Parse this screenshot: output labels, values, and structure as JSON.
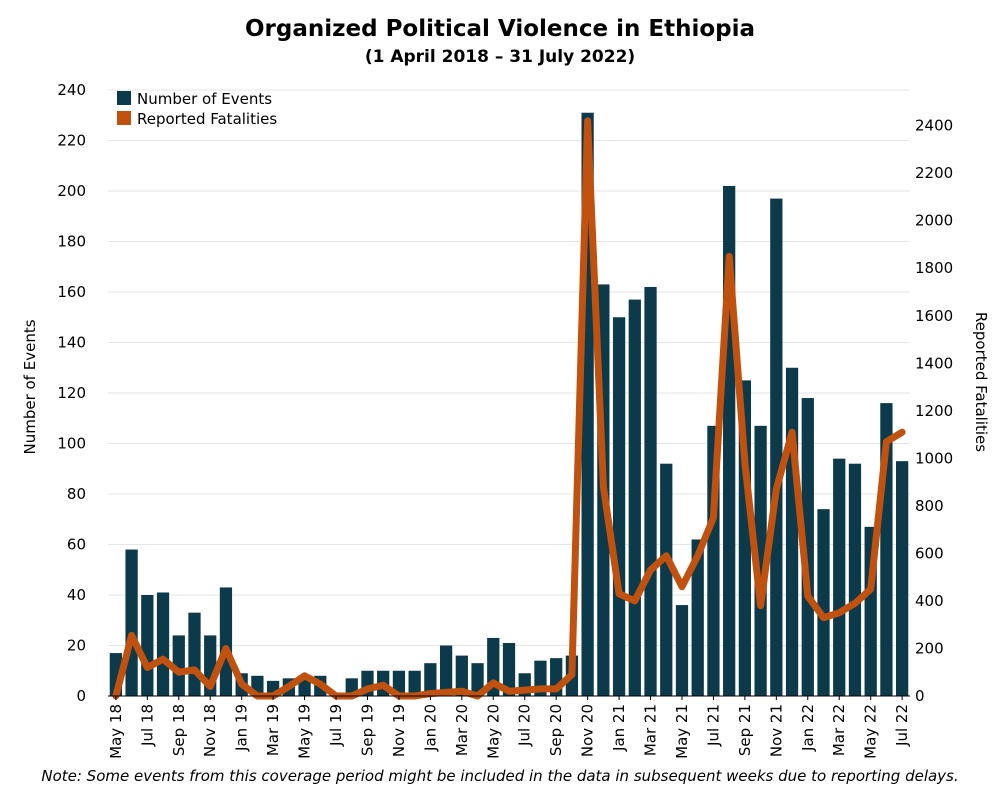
{
  "chart_data": {
    "type": "bar",
    "title": "Organized Political Violence in Ethiopia",
    "subtitle": "(1 April 2018 – 31 July 2022)",
    "ylabel": "Number of Events",
    "y2label": "Reported Fatalities",
    "ylim": [
      0,
      240
    ],
    "y2lim": [
      0,
      2550
    ],
    "yticks": [
      0,
      20,
      40,
      60,
      80,
      100,
      120,
      140,
      160,
      180,
      200,
      220,
      240
    ],
    "y2ticks": [
      0,
      200,
      400,
      600,
      800,
      1000,
      1200,
      1400,
      1600,
      1800,
      2000,
      2200,
      2400
    ],
    "x_tick_labels": [
      "May 18",
      "Jul 18",
      "Sep 18",
      "Nov 18",
      "Jan 19",
      "Mar 19",
      "May 19",
      "Jul 19",
      "Sep 19",
      "Nov 19",
      "Jan 20",
      "Mar 20",
      "May 20",
      "Jul 20",
      "Sep 20",
      "Nov 20",
      "Jan 21",
      "Mar 21",
      "May 21",
      "Jul 21",
      "Sep 21",
      "Nov 21",
      "Jan 22",
      "Mar 22",
      "May 22",
      "Jul 22"
    ],
    "legend_position": "top-left",
    "grid": true,
    "series": [
      {
        "name": "Number of Events",
        "type": "bar",
        "axis": "left",
        "color": "#0d3a4a",
        "values": [
          17,
          58,
          40,
          41,
          24,
          33,
          24,
          43,
          9,
          8,
          6,
          7,
          8,
          8,
          0,
          7,
          10,
          10,
          10,
          10,
          13,
          20,
          16,
          13,
          23,
          21,
          9,
          14,
          15,
          16,
          231,
          163,
          150,
          157,
          162,
          92,
          36,
          62,
          107,
          202,
          125,
          107,
          197,
          130,
          118,
          74,
          94,
          92,
          67,
          116,
          93
        ]
      },
      {
        "name": "Reported Fatalities",
        "type": "line",
        "axis": "right",
        "color": "#c0510e",
        "values": [
          0,
          255,
          120,
          155,
          100,
          110,
          40,
          200,
          50,
          0,
          0,
          40,
          85,
          50,
          0,
          0,
          30,
          45,
          0,
          0,
          10,
          15,
          20,
          0,
          55,
          20,
          25,
          30,
          30,
          90,
          2420,
          880,
          430,
          400,
          530,
          590,
          460,
          590,
          750,
          1850,
          980,
          380,
          870,
          1110,
          420,
          330,
          350,
          390,
          450,
          1070,
          1110
        ]
      }
    ]
  },
  "note": "Note: Some events from this coverage period might be included in the data in subsequent weeks due to reporting delays."
}
